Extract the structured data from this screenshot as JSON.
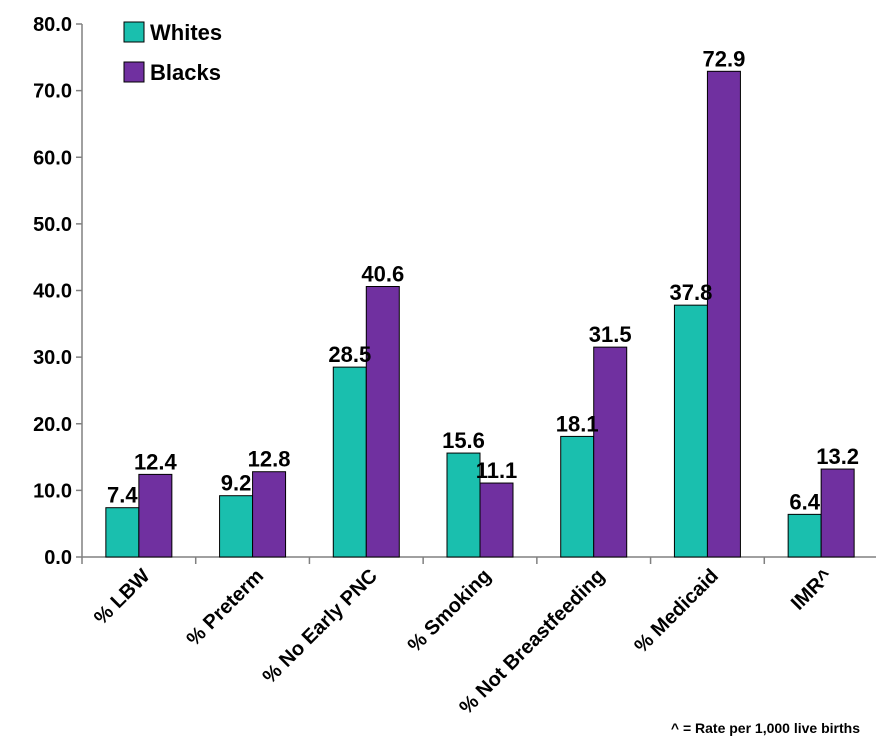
{
  "chart_data": {
    "type": "bar",
    "categories": [
      "% LBW",
      "% Preterm",
      "% No Early PNC",
      "% Smoking",
      "% Not Breastfeeding",
      "% Medicaid",
      "IMR^"
    ],
    "series": [
      {
        "name": "Whites",
        "color": "#1abfae",
        "values": [
          7.4,
          9.2,
          28.5,
          15.6,
          18.1,
          37.8,
          6.4
        ]
      },
      {
        "name": "Blacks",
        "color": "#7030a0",
        "values": [
          12.4,
          12.8,
          40.6,
          11.1,
          31.5,
          72.9,
          13.2
        ]
      }
    ],
    "data_labels": {
      "Whites": [
        "7.4",
        "9.2",
        "28.5",
        "15.6",
        "18.1",
        "37.8",
        "6.4"
      ],
      "Blacks": [
        "12.4",
        "12.8",
        "40.6",
        "11.1",
        "31.5",
        "72.9",
        "13.2"
      ]
    },
    "ylim": [
      0,
      80
    ],
    "yticks": [
      "0.0",
      "10.0",
      "20.0",
      "30.0",
      "40.0",
      "50.0",
      "60.0",
      "70.0",
      "80.0"
    ],
    "grid": false,
    "legend_position": "top-left",
    "xlabel": "",
    "ylabel": ""
  },
  "footnote": "^ = Rate per 1,000 live births"
}
